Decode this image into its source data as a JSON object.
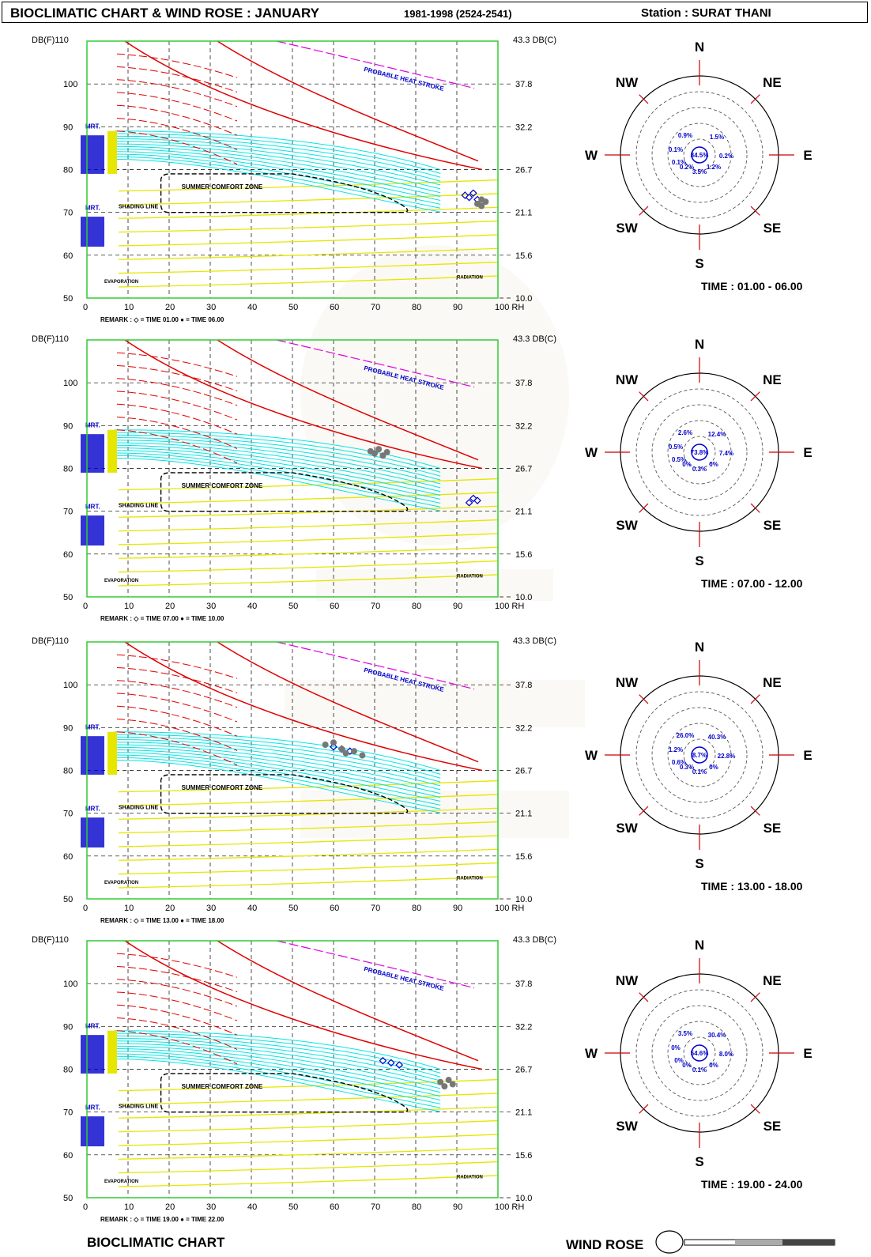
{
  "header": {
    "title": "BIOCLIMATIC CHART & WIND ROSE : JANUARY",
    "years": "1981-1998 (2524-2541)",
    "station": "Station : SURAT THANI"
  },
  "colors": {
    "frame": "#33cc33",
    "comfort_boundary": "#000000",
    "cooling_curves": "#00e5e5",
    "warm_curves": "#e00000",
    "radiation_lines": "#e6e600",
    "effect_labels": "#0000cc",
    "heat_stroke": "#dd00dd",
    "time_marker_gray": "#777777",
    "rose_circles": "#000000"
  },
  "chart_labels": {
    "y_left_title": "DB(F)110",
    "y_right_title": "43.3 DB(C)",
    "x_unit": "100 RH",
    "comfort_zone": "SUMMER COMFORT ZONE",
    "shading_line": "SHADING LINE",
    "heat_stroke": "PROBABLE HEAT STROKE",
    "mrt": "MRT.",
    "radiation": "RADIATION",
    "evaporation": "EVAPORATION"
  },
  "chart_data": {
    "type": "scatter",
    "x_axis": {
      "label": "RH",
      "range": [
        0,
        100
      ],
      "ticks": [
        0,
        10,
        20,
        30,
        40,
        50,
        60,
        70,
        80,
        90,
        100
      ]
    },
    "y_axis_left": {
      "label": "DB(F)",
      "range": [
        50,
        110
      ],
      "ticks": [
        50,
        60,
        70,
        80,
        90,
        100
      ]
    },
    "y_axis_right": {
      "label": "DB(C)",
      "ticks": [
        "10.0",
        "15.6",
        "21.1",
        "26.7",
        "32.2",
        "37.8"
      ]
    },
    "grid": true,
    "panels": [
      {
        "remark": "REMARK : ◇ = TIME 01.00 ● = TIME 06.00",
        "points_open": [
          [
            92,
            74
          ],
          [
            93,
            73.5
          ],
          [
            94,
            74.5
          ],
          [
            95,
            73
          ]
        ],
        "points_gray": [
          [
            95,
            72
          ],
          [
            96,
            71.5
          ],
          [
            97,
            72.5
          ],
          [
            96,
            73
          ]
        ]
      },
      {
        "remark": "REMARK : ◇ = TIME 07.00 ● = TIME 10.00",
        "points_open": [
          [
            93,
            72
          ],
          [
            94,
            73
          ],
          [
            95,
            72.5
          ]
        ],
        "points_gray": [
          [
            69,
            84
          ],
          [
            70,
            83.5
          ],
          [
            71,
            84.5
          ],
          [
            72,
            83
          ],
          [
            73,
            83.8
          ]
        ]
      },
      {
        "remark": "REMARK : ◇ = TIME 13.00 ● = TIME 18.00",
        "points_open": [
          [
            60,
            85.5
          ],
          [
            62,
            85
          ],
          [
            64,
            84.5
          ]
        ],
        "points_gray": [
          [
            58,
            86
          ],
          [
            60,
            86.5
          ],
          [
            62,
            85
          ],
          [
            63,
            84
          ],
          [
            65,
            84.5
          ],
          [
            67,
            83.5
          ]
        ]
      },
      {
        "remark": "REMARK : ◇ = TIME 19.00 ● = TIME 22.00",
        "points_open": [
          [
            72,
            82
          ],
          [
            74,
            81.5
          ],
          [
            76,
            81
          ]
        ],
        "points_gray": [
          [
            86,
            77
          ],
          [
            87,
            76
          ],
          [
            88,
            77.5
          ],
          [
            89,
            76.5
          ]
        ]
      }
    ]
  },
  "wind_roses": [
    {
      "time": "TIME : 01.00 - 06.00",
      "center": "84.5%",
      "labels": [
        "0.9%",
        "1.5%",
        "0.1%",
        "0.1%",
        "0.2%",
        "3.5%",
        "0.2%",
        "1.2%"
      ]
    },
    {
      "time": "TIME : 07.00 - 12.00",
      "center": "73.8%",
      "labels": [
        "2.6%",
        "12.4%",
        "0.5%",
        "0.5%",
        "7.4%",
        "0.3%",
        "0%",
        "0%"
      ]
    },
    {
      "time": "TIME : 13.00 - 18.00",
      "center": "8.7%",
      "labels": [
        "26.0%",
        "40.3%",
        "1.2%",
        "0.6%",
        "22.8%",
        "0.1%",
        "0.3%",
        "0%"
      ]
    },
    {
      "time": "TIME : 19.00 - 24.00",
      "center": "54.6%",
      "labels": [
        "3.5%",
        "30.4%",
        "0%",
        "0%",
        "8.0%",
        "0.1%",
        "0%",
        "0%"
      ]
    }
  ],
  "compass": {
    "n": "N",
    "ne": "NE",
    "e": "E",
    "se": "SE",
    "s": "S",
    "sw": "SW",
    "w": "W",
    "nw": "NW"
  },
  "footer": {
    "left": "BIOCLIMATIC CHART",
    "right": "WIND ROSE"
  }
}
